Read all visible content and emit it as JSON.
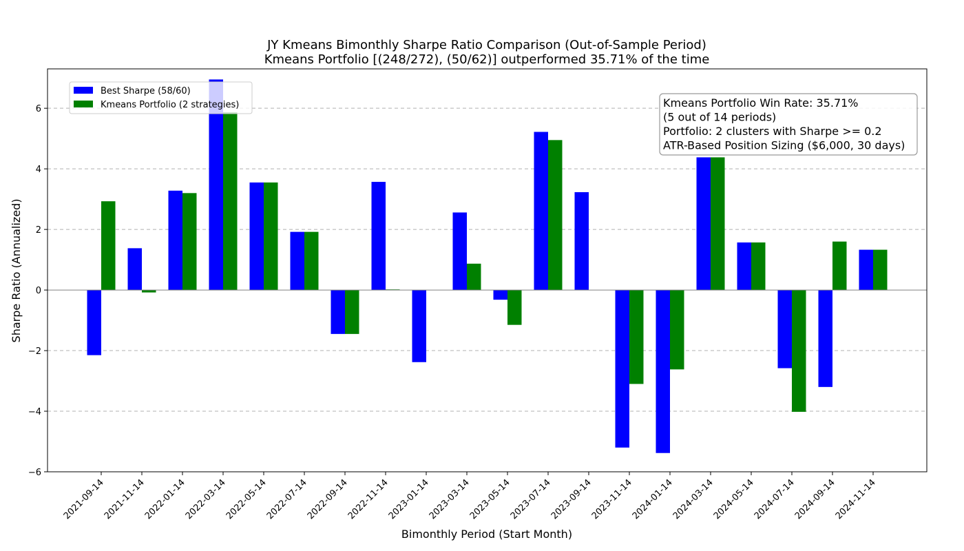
{
  "chart_data": {
    "type": "bar",
    "title": "JY Kmeans Bimonthly Sharpe Ratio Comparison (Out-of-Sample Period)",
    "subtitle": "Kmeans Portfolio [(248/272), (50/62)] outperformed 35.71% of the time",
    "xlabel": "Bimonthly Period (Start Month)",
    "ylabel": "Sharpe Ratio (Annualized)",
    "ylim": [
      -6,
      7.3
    ],
    "yticks": [
      -6,
      -4,
      -2,
      0,
      2,
      4,
      6
    ],
    "grid": "y-dashed",
    "legend_position": "top-left",
    "categories": [
      "2021-09-14",
      "2021-11-14",
      "2022-01-14",
      "2022-03-14",
      "2022-05-14",
      "2022-07-14",
      "2022-09-14",
      "2022-11-14",
      "2023-01-14",
      "2023-03-14",
      "2023-05-14",
      "2023-07-14",
      "2023-09-14",
      "2023-11-14",
      "2024-01-14",
      "2024-03-14",
      "2024-05-14",
      "2024-07-14",
      "2024-09-14",
      "2024-11-14"
    ],
    "series": [
      {
        "name": "Best Sharpe (58/60)",
        "color": "#0000ff",
        "values": [
          -2.15,
          1.38,
          3.28,
          6.95,
          3.55,
          1.92,
          -1.45,
          3.57,
          -2.38,
          2.56,
          -0.32,
          5.22,
          3.23,
          -5.2,
          -5.38,
          4.38,
          1.57,
          -2.58,
          -3.2,
          1.33
        ]
      },
      {
        "name": "Kmeans Portfolio (2 strategies)",
        "color": "#008000",
        "values": [
          2.93,
          -0.08,
          3.2,
          5.87,
          3.55,
          1.92,
          -1.45,
          0.02,
          0.0,
          0.87,
          -1.15,
          4.95,
          0.0,
          -3.1,
          -2.62,
          4.38,
          1.57,
          -4.02,
          1.6,
          1.33
        ]
      }
    ],
    "annotation": {
      "position": "top-right",
      "lines": [
        "Kmeans Portfolio Win Rate: 35.71%",
        "(5 out of 14 periods)",
        "Portfolio: 2 clusters with Sharpe >= 0.2",
        "ATR-Based Position Sizing ($6,000, 30 days)"
      ]
    }
  }
}
